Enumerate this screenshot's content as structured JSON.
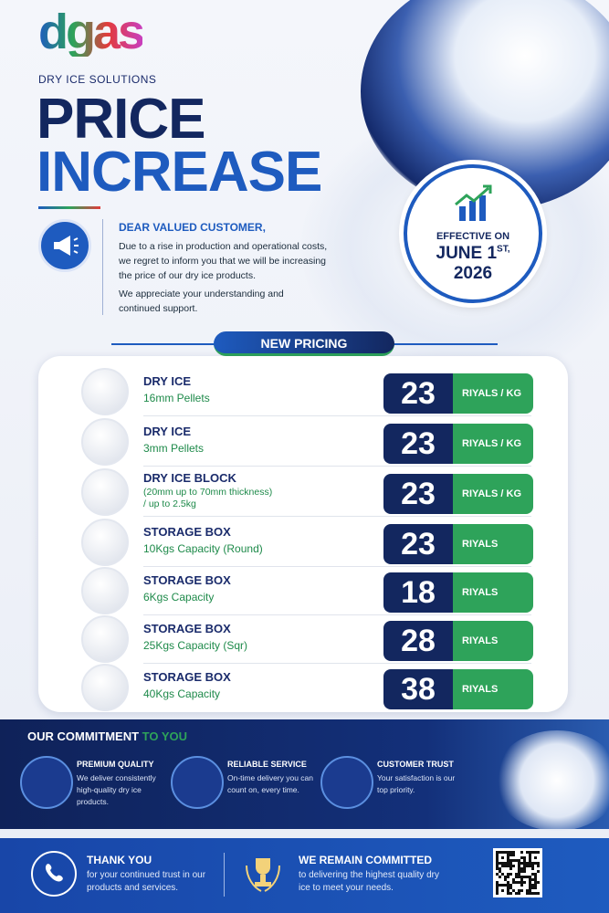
{
  "header": {
    "logo": "dgas",
    "tagline": "DRY ICE SOLUTIONS",
    "title_line1": "PRICE",
    "title_line2": "INCREASE"
  },
  "letter": {
    "heading": "DEAR VALUED CUSTOMER,",
    "paragraphs": [
      "Due to a rise in production and operational costs, we regret to inform you that we will be increasing the price of our dry ice products.",
      "We appreciate your understanding and continued support."
    ]
  },
  "effective": {
    "label": "EFFECTIVE ON",
    "date": "JUNE 1",
    "date_suffix": "ST,",
    "year": "2026"
  },
  "pricing": {
    "heading": "NEW PRICING",
    "items": [
      {
        "name": "DRY ICE",
        "details": [
          "16mm Pellets"
        ],
        "price": 23,
        "unit": "RIYALS / KG"
      },
      {
        "name": "DRY ICE",
        "details": [
          "3mm Pellets"
        ],
        "price": 23,
        "unit": "RIYALS / KG"
      },
      {
        "name": "DRY ICE BLOCK",
        "details": [
          "(20mm up to 70mm thickness)",
          "/ up to 2.5kg"
        ],
        "price": 23,
        "unit": "RIYALS / KG"
      },
      {
        "name": "STORAGE BOX",
        "details": [
          "10Kgs Capacity (Round)"
        ],
        "price": 23,
        "unit": "RIYALS"
      },
      {
        "name": "STORAGE BOX",
        "details": [
          "6Kgs Capacity"
        ],
        "price": 18,
        "unit": "RIYALS"
      },
      {
        "name": "STORAGE BOX",
        "details": [
          "25Kgs Capacity (Sqr)"
        ],
        "price": 28,
        "unit": "RIYALS"
      },
      {
        "name": "STORAGE BOX",
        "details": [
          "40Kgs Capacity"
        ],
        "price": 38,
        "unit": "RIYALS"
      }
    ]
  },
  "commitment": {
    "title": "OUR COMMITMENT",
    "title_accent": "TO YOU",
    "items": [
      {
        "title": "PREMIUM QUALITY",
        "text": "We deliver consistently high-quality dry ice products."
      },
      {
        "title": "RELIABLE SERVICE",
        "text": "On-time delivery you can count on, every time."
      },
      {
        "title": "CUSTOMER TRUST",
        "text": "Your satisfaction is our top priority."
      }
    ]
  },
  "footer": [
    {
      "title": "THANK YOU",
      "text": "for your continued trust in our products and services."
    },
    {
      "title": "WE REMAIN COMMITTED",
      "text": "to delivering the highest quality dry ice to meet your needs."
    }
  ]
}
